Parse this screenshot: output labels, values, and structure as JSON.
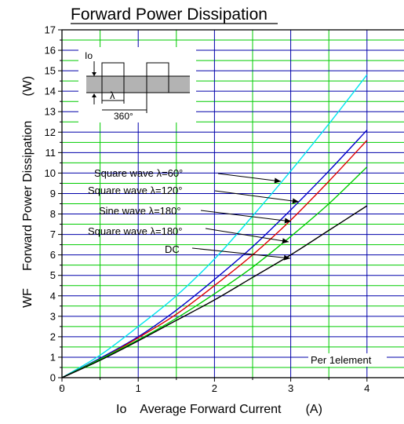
{
  "chart_data": {
    "type": "line",
    "title": "Forward Power Dissipation",
    "xlabel": "Io    Average Forward Current       (A)",
    "ylabel": "WF     Forward Power Dissipation       (W)",
    "xlim": [
      0,
      4.5
    ],
    "ylim": [
      0,
      17
    ],
    "x_ticks": [
      "0",
      "1",
      "2",
      "3",
      "4"
    ],
    "y_ticks": [
      "0",
      "1",
      "2",
      "3",
      "4",
      "5",
      "6",
      "7",
      "8",
      "9",
      "10",
      "11",
      "12",
      "13",
      "14",
      "15",
      "16",
      "17"
    ],
    "grid": true,
    "note": "Per 1element",
    "inset": {
      "io_label": "Io",
      "lambda_label": "λ",
      "period_label": "360°"
    },
    "series": [
      {
        "name": "Square wave λ=60°",
        "color": "#00e5ee",
        "x": [
          0,
          0.5,
          1,
          1.5,
          2,
          2.5,
          3,
          3.5,
          4
        ],
        "y": [
          0,
          1.1,
          2.5,
          4.0,
          5.8,
          7.9,
          10.1,
          12.4,
          14.8
        ]
      },
      {
        "name": "Square wave λ=120°",
        "color": "#0000cc",
        "x": [
          0,
          0.5,
          1,
          1.5,
          2,
          2.5,
          3,
          3.5,
          4
        ],
        "y": [
          0,
          0.95,
          2.0,
          3.3,
          4.8,
          6.4,
          8.2,
          10.1,
          12.1
        ]
      },
      {
        "name": "Sine wave λ=180°",
        "color": "#dd0000",
        "x": [
          0,
          0.5,
          1,
          1.5,
          2,
          2.5,
          3,
          3.5,
          4
        ],
        "y": [
          0,
          0.9,
          1.95,
          3.1,
          4.5,
          6.0,
          7.7,
          9.6,
          11.6
        ]
      },
      {
        "name": "Square wave λ=180°",
        "color": "#00cc00",
        "x": [
          0,
          0.5,
          1,
          1.5,
          2,
          2.5,
          3,
          3.5,
          4
        ],
        "y": [
          0,
          0.9,
          1.85,
          2.9,
          4.1,
          5.4,
          6.9,
          8.5,
          10.3
        ]
      },
      {
        "name": "DC",
        "color": "#000000",
        "x": [
          0,
          0.5,
          1,
          1.5,
          2,
          2.5,
          3,
          3.5,
          4
        ],
        "y": [
          0,
          0.85,
          1.8,
          2.8,
          3.8,
          4.9,
          6.0,
          7.2,
          8.4
        ]
      }
    ],
    "annotations": [
      {
        "text": "Square wave λ=60°",
        "points_to_series": 0
      },
      {
        "text": "Square wave λ=120°",
        "points_to_series": 1
      },
      {
        "text": "Sine wave λ=180°",
        "points_to_series": 2
      },
      {
        "text": "Square wave λ=180°",
        "points_to_series": 3
      },
      {
        "text": "DC",
        "points_to_series": 4
      }
    ],
    "colors": {
      "major_grid": "#0000aa",
      "minor_grid": "#00cc00"
    }
  }
}
